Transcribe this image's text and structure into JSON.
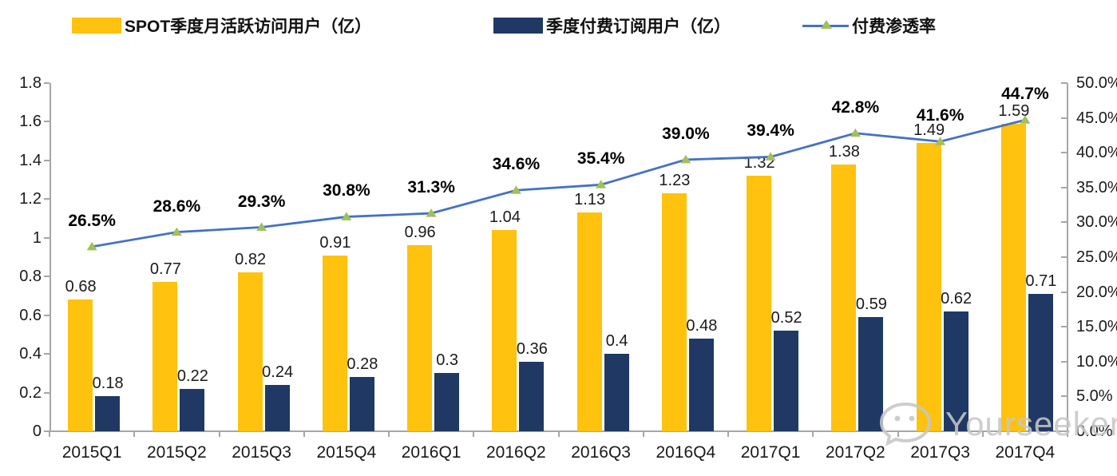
{
  "legend": {
    "items": [
      {
        "label": "SPOT季度月活跃访问用户（亿）",
        "swatch": "bar",
        "color": "#FFC20E"
      },
      {
        "label": "季度付费订阅用户（亿）",
        "swatch": "bar",
        "color": "#1F3864"
      },
      {
        "label": "付费渗透率",
        "swatch": "line-marker",
        "color": "#4472C4",
        "marker_color": "#A3BF5A"
      }
    ]
  },
  "chart_data": {
    "type": "bar",
    "subtype": "grouped-bars-with-line",
    "categories": [
      "2015Q1",
      "2015Q2",
      "2015Q3",
      "2015Q4",
      "2016Q1",
      "2016Q2",
      "2016Q3",
      "2016Q4",
      "2017Q1",
      "2017Q2",
      "2017Q3",
      "2017Q4"
    ],
    "series": [
      {
        "name": "SPOT季度月活跃访问用户（亿）",
        "type": "bar",
        "color": "#FFC20E",
        "axis": "left",
        "values": [
          0.68,
          0.77,
          0.82,
          0.91,
          0.96,
          1.04,
          1.13,
          1.23,
          1.32,
          1.38,
          1.49,
          1.59
        ],
        "labels": [
          "0.68",
          "0.77",
          "0.82",
          "0.91",
          "0.96",
          "1.04",
          "1.13",
          "1.23",
          "1.32",
          "1.38",
          "1.49",
          "1.59"
        ]
      },
      {
        "name": "季度付费订阅用户（亿）",
        "type": "bar",
        "color": "#1F3864",
        "axis": "left",
        "values": [
          0.18,
          0.22,
          0.24,
          0.28,
          0.3,
          0.36,
          0.4,
          0.48,
          0.52,
          0.59,
          0.62,
          0.71
        ],
        "labels": [
          "0.18",
          "0.22",
          "0.24",
          "0.28",
          "0.3",
          "0.36",
          "0.4",
          "0.48",
          "0.52",
          "0.59",
          "0.62",
          "0.71"
        ]
      },
      {
        "name": "付费渗透率",
        "type": "line",
        "color": "#4472C4",
        "marker": "triangle",
        "marker_color": "#A3BF5A",
        "axis": "right",
        "values": [
          26.5,
          28.6,
          29.3,
          30.8,
          31.3,
          34.6,
          35.4,
          39.0,
          39.4,
          42.8,
          41.6,
          44.7
        ],
        "labels": [
          "26.5%",
          "28.6%",
          "29.3%",
          "30.8%",
          "31.3%",
          "34.6%",
          "35.4%",
          "39.0%",
          "39.4%",
          "42.8%",
          "41.6%",
          "44.7%"
        ]
      }
    ],
    "left_axis": {
      "min": 0,
      "max": 1.8,
      "tick_step": 0.2,
      "ticks": [
        "1.8",
        "1.6",
        "1.4",
        "1.2",
        "1",
        "0.8",
        "0.6",
        "0.4",
        "0.2",
        "0"
      ]
    },
    "right_axis": {
      "min": 0,
      "max": 50,
      "tick_step": 5,
      "ticks": [
        "50.0%",
        "45.0%",
        "40.0%",
        "35.0%",
        "30.0%",
        "25.0%",
        "20.0%",
        "15.0%",
        "10.0%",
        "5.0%",
        "0.0%"
      ]
    },
    "grid": false,
    "legend_position": "top"
  },
  "watermark": {
    "text": "Yourseeker",
    "icon": "wechat-icon",
    "color": "#C7C7C7"
  }
}
